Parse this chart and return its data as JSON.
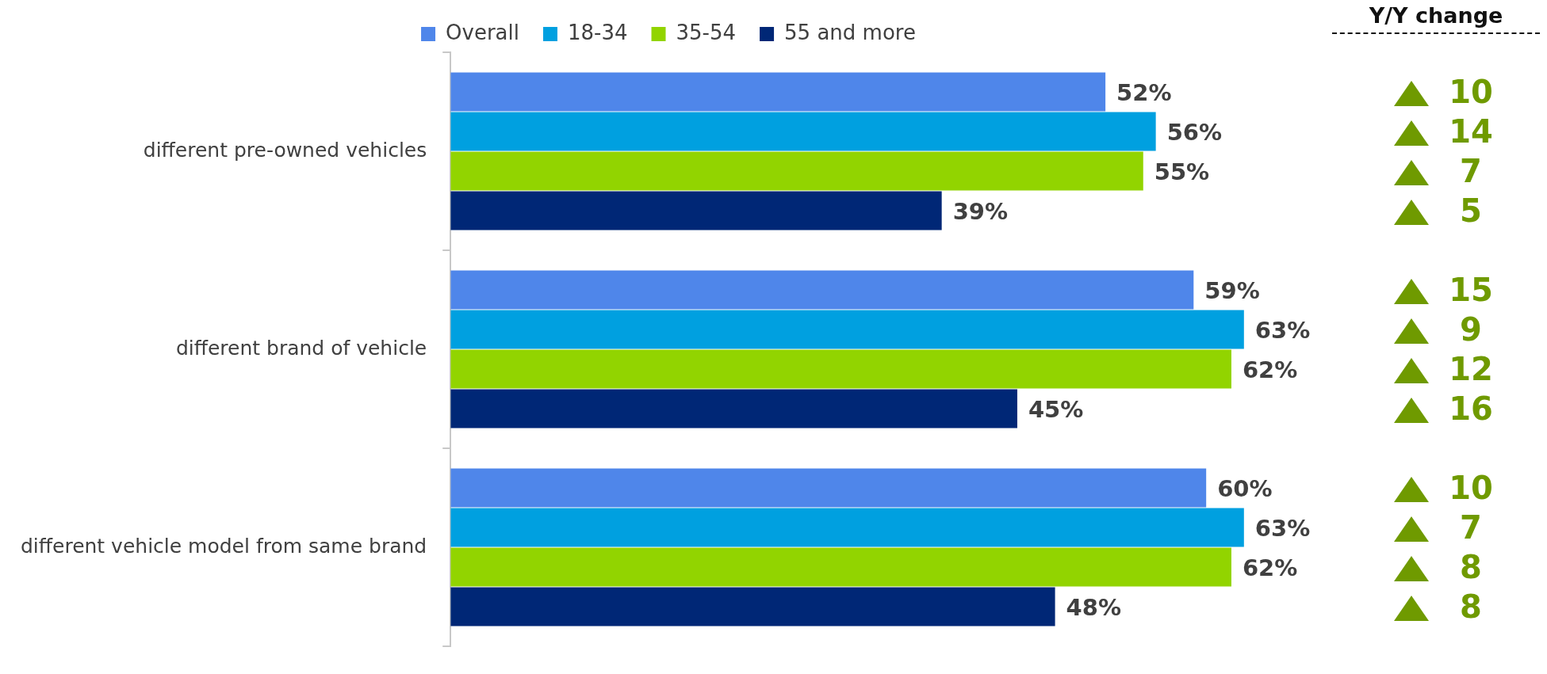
{
  "chart_data": {
    "type": "bar",
    "orientation": "horizontal",
    "categories": [
      "different pre-owned vehicles",
      "different brand of vehicle",
      "different vehicle model from same brand"
    ],
    "series": [
      {
        "name": "Overall",
        "color": "#4f86ea",
        "values": [
          52,
          59,
          60
        ],
        "value_labels": [
          "52%",
          "59%",
          "60%"
        ]
      },
      {
        "name": "18-34",
        "color": "#00a0e0",
        "values": [
          56,
          63,
          63
        ],
        "value_labels": [
          "56%",
          "63%",
          "63%"
        ]
      },
      {
        "name": "35-54",
        "color": "#92d400",
        "values": [
          55,
          62,
          62
        ],
        "value_labels": [
          "55%",
          "62%",
          "62%"
        ]
      },
      {
        "name": "55 and more",
        "color": "#002776",
        "values": [
          39,
          45,
          48
        ],
        "value_labels": [
          "39%",
          "45%",
          "48%"
        ]
      }
    ],
    "tick_labels": "y",
    "grid": false,
    "legend": "top",
    "annotations": [
      "Y/Y change",
      "10",
      "14",
      "7",
      "5",
      "15",
      "9",
      "12",
      "16",
      "10",
      "7",
      "8",
      "8"
    ]
  }
}
